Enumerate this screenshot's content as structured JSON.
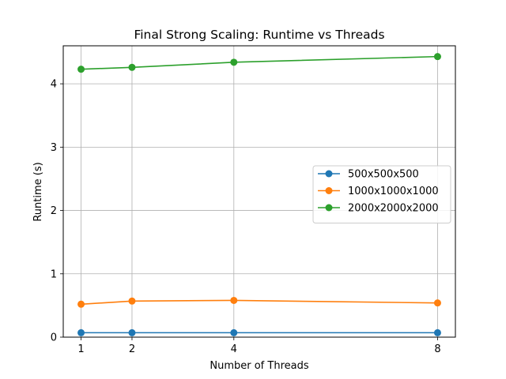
{
  "chart_data": {
    "type": "line",
    "title": "Final Strong Scaling: Runtime vs Threads",
    "xlabel": "Number of Threads",
    "ylabel": "Runtime (s)",
    "x": [
      1,
      2,
      4,
      8
    ],
    "x_ticks": [
      1,
      2,
      4,
      8
    ],
    "x_tick_labels": [
      "1",
      "2",
      "4",
      "8"
    ],
    "xlim": [
      0.65,
      8.35
    ],
    "y_ticks": [
      0,
      1,
      2,
      3,
      4
    ],
    "y_tick_labels": [
      "0",
      "1",
      "2",
      "3",
      "4"
    ],
    "ylim": [
      0,
      4.6
    ],
    "grid": true,
    "legend_position": "center-right",
    "series": [
      {
        "name": "500x500x500",
        "color": "#1f77b4",
        "values": [
          0.07,
          0.07,
          0.07,
          0.07
        ]
      },
      {
        "name": "1000x1000x1000",
        "color": "#ff7f0e",
        "values": [
          0.52,
          0.57,
          0.58,
          0.54
        ]
      },
      {
        "name": "2000x2000x2000",
        "color": "#2ca02c",
        "values": [
          4.23,
          4.26,
          4.34,
          4.43
        ]
      }
    ]
  }
}
